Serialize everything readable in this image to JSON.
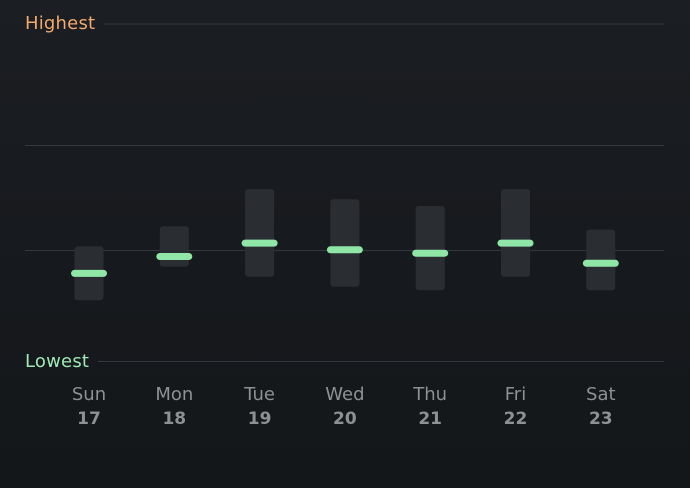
{
  "header": {
    "highest_label": "Highest",
    "lowest_label": "Lowest"
  },
  "colors": {
    "background": "#16191d",
    "highest": "#f1a96c",
    "lowest": "#9ee9b4",
    "marker": "#8fe6a6",
    "range_bar": "#2a2e33",
    "gridline": "#34383d",
    "day_text": "#8c9196"
  },
  "chart_data": {
    "type": "bar",
    "subtype": "range-with-marker",
    "categories": [
      "Sun 17",
      "Mon 18",
      "Tue 19",
      "Wed 20",
      "Thu 21",
      "Fri 22",
      "Sat 23"
    ],
    "days": [
      {
        "name": "Sun",
        "num": "17"
      },
      {
        "name": "Mon",
        "num": "18"
      },
      {
        "name": "Tue",
        "num": "19"
      },
      {
        "name": "Wed",
        "num": "20"
      },
      {
        "name": "Thu",
        "num": "21"
      },
      {
        "name": "Fri",
        "num": "22"
      },
      {
        "name": "Sat",
        "num": "23"
      }
    ],
    "series": [
      {
        "low": [
          0.18,
          0.28,
          0.25,
          0.22,
          0.21,
          0.25,
          0.21
        ]
      },
      {
        "high": [
          0.34,
          0.4,
          0.51,
          0.48,
          0.46,
          0.51,
          0.39
        ]
      },
      {
        "value": [
          0.26,
          0.31,
          0.35,
          0.33,
          0.32,
          0.35,
          0.29
        ]
      }
    ],
    "ylim": [
      0,
      1
    ],
    "gridlines": [
      0.33,
      0.64
    ],
    "title": "",
    "xlabel": "",
    "ylabel": "",
    "legend": "none"
  }
}
